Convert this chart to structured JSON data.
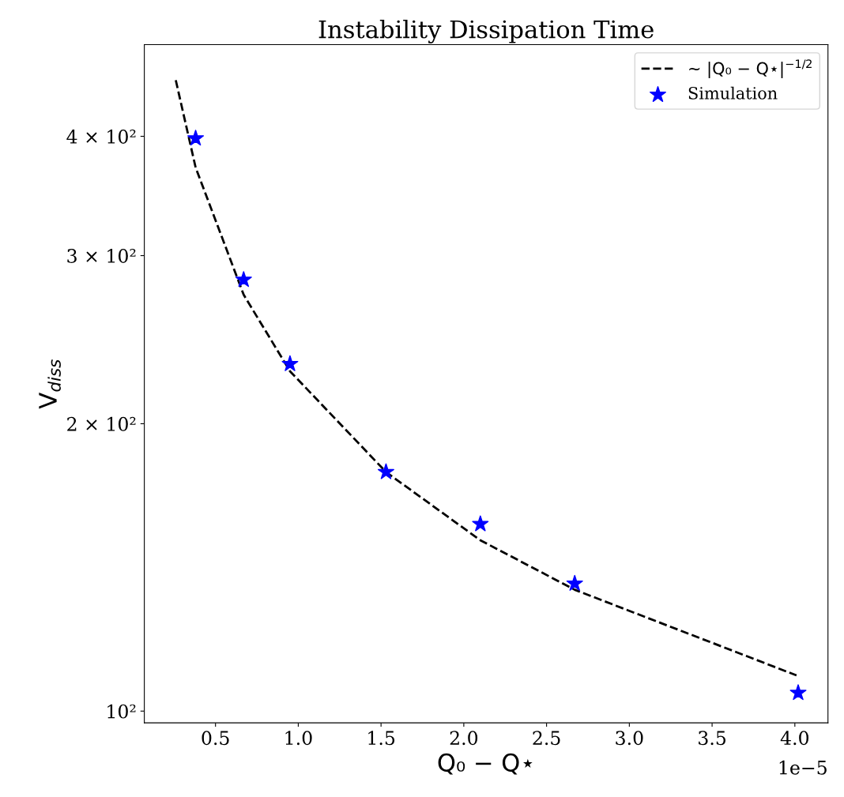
{
  "chart_data": {
    "type": "scatter",
    "title": "Instability Dissipation Time",
    "xlabel": "Q₀ − Q⋆",
    "ylabel": "V$_{diss}$",
    "log": "y",
    "xlim": [
      0.07,
      4.2
    ],
    "ylim": [
      97.2,
      499
    ],
    "xticks": [
      0.5,
      {
        "value": 1,
        "label": "1.0"
      },
      1.5,
      {
        "value": 2,
        "label": "2.0"
      },
      2.5,
      {
        "value": 3,
        "label": "3.0"
      },
      3.5,
      {
        "value": 4,
        "label": "4.0"
      }
    ],
    "yticks": [
      {
        "value": 100,
        "label": "10²"
      },
      {
        "value": 200,
        "label": "2 × 10²"
      },
      {
        "value": 300,
        "label": "3 × 10²"
      },
      {
        "value": 400,
        "label": "4 × 10²"
      }
    ],
    "annotations": [
      "1e−5"
    ],
    "grid": false,
    "legend": "top right",
    "series": [
      {
        "name": "∼ |Q₀ − Q⋆|$^{−1/2}$",
        "type": "line",
        "color": "#000000",
        "line_style": "dashed",
        "marker": "none",
        "x": [
          0.26,
          0.38,
          0.67,
          0.95,
          1.53,
          2.1,
          2.67,
          4.01
        ],
        "values": [
          458,
          371,
          273,
          227,
          178,
          151,
          134,
          109
        ]
      },
      {
        "name": "Simulation",
        "color": "#0000ff",
        "marker": "star",
        "x": [
          0.38,
          0.67,
          0.95,
          1.53,
          2.1,
          2.67,
          4.02
        ],
        "values": [
          398,
          283,
          231,
          178,
          157,
          136,
          104.5
        ]
      }
    ]
  }
}
